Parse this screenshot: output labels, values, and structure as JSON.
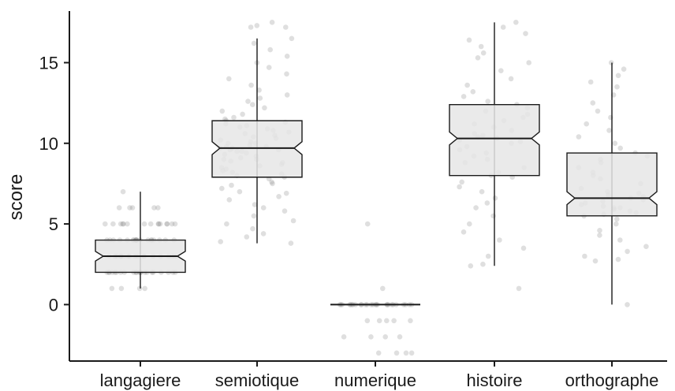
{
  "chart_data": {
    "type": "boxplot",
    "title": "",
    "xlabel": "",
    "ylabel": "score",
    "ylim": [
      -3.5,
      18.2
    ],
    "yticks": [
      0,
      5,
      10,
      15
    ],
    "notched": true,
    "categories": [
      "langagiere",
      "semiotique",
      "numerique",
      "histoire",
      "orthographe"
    ],
    "boxes": [
      {
        "category": "langagiere",
        "whisker_low": 1,
        "q1": 2,
        "median": 3,
        "q3": 4,
        "whisker_high": 7,
        "notch_low": 2.7,
        "notch_high": 3.3
      },
      {
        "category": "semiotique",
        "whisker_low": 3.8,
        "q1": 7.9,
        "median": 9.7,
        "q3": 11.4,
        "whisker_high": 16.5,
        "notch_low": 9.3,
        "notch_high": 10.1
      },
      {
        "category": "numerique",
        "whisker_low": 0,
        "q1": 0,
        "median": 0,
        "q3": 0,
        "whisker_high": 0,
        "notch_low": 0,
        "notch_high": 0
      },
      {
        "category": "histoire",
        "whisker_low": 2.4,
        "q1": 8.0,
        "median": 10.3,
        "q3": 12.4,
        "whisker_high": 17.5,
        "notch_low": 9.9,
        "notch_high": 10.7
      },
      {
        "category": "orthographe",
        "whisker_low": 0,
        "q1": 5.5,
        "median": 6.6,
        "q3": 9.4,
        "whisker_high": 15.0,
        "notch_low": 6.2,
        "notch_high": 7.0
      }
    ],
    "points": {
      "langagiere": [
        1,
        1,
        1,
        1,
        2,
        2,
        2,
        2,
        2,
        2,
        2,
        2,
        2,
        2,
        2,
        2,
        2,
        2,
        2,
        2,
        2,
        2,
        2,
        2,
        2,
        2,
        3,
        3,
        3,
        3,
        3,
        3,
        3,
        3,
        3,
        3,
        3,
        3,
        3,
        3,
        3,
        3,
        3,
        3,
        3,
        3,
        3,
        3,
        4,
        4,
        4,
        4,
        4,
        4,
        4,
        4,
        4,
        4,
        4,
        4,
        4,
        4,
        4,
        4,
        4,
        4,
        4,
        4,
        5,
        5,
        5,
        5,
        5,
        5,
        5,
        5,
        5,
        5,
        5,
        5,
        5,
        5,
        5,
        6,
        6,
        6,
        6,
        6,
        7
      ],
      "semiotique": [
        3.8,
        3.9,
        4.2,
        4.4,
        4.7,
        5.0,
        5.2,
        5.5,
        5.8,
        6.0,
        6.2,
        6.5,
        6.7,
        6.9,
        7.0,
        7.2,
        7.4,
        7.5,
        7.6,
        7.8,
        7.9,
        8.0,
        8.1,
        8.2,
        8.3,
        8.4,
        8.5,
        8.6,
        8.7,
        8.8,
        8.9,
        9.0,
        9.0,
        9.1,
        9.2,
        9.3,
        9.4,
        9.5,
        9.5,
        9.6,
        9.6,
        9.7,
        9.7,
        9.8,
        9.8,
        9.9,
        10.0,
        10.0,
        10.1,
        10.2,
        10.3,
        10.4,
        10.5,
        10.6,
        10.7,
        10.8,
        10.9,
        11.0,
        11.1,
        11.2,
        11.3,
        11.4,
        11.5,
        11.6,
        11.8,
        12.0,
        12.2,
        12.4,
        12.6,
        12.8,
        13.0,
        13.3,
        13.6,
        14.0,
        14.3,
        14.7,
        15.0,
        15.4,
        15.8,
        16.2,
        16.5,
        17.2,
        17.2,
        17.3,
        17.5
      ],
      "numerique": [
        -3,
        -3,
        -3,
        -3,
        -2,
        -2,
        -2,
        -2,
        -1,
        -1,
        -1,
        -1,
        -1,
        0,
        0,
        0,
        0,
        0,
        0,
        0,
        0,
        0,
        0,
        0,
        0,
        0,
        0,
        0,
        0,
        0,
        0,
        0,
        0,
        0,
        0,
        0,
        0,
        0,
        0,
        0,
        1,
        5
      ],
      "histoire": [
        1.0,
        2.4,
        2.5,
        3.0,
        3.5,
        4.0,
        4.5,
        5.0,
        5.5,
        6.0,
        6.3,
        6.6,
        7.0,
        7.3,
        7.6,
        7.9,
        8.0,
        8.2,
        8.5,
        8.8,
        9.0,
        9.2,
        9.4,
        9.6,
        9.8,
        10.0,
        10.1,
        10.2,
        10.3,
        10.4,
        10.5,
        10.6,
        10.8,
        11.0,
        11.2,
        11.4,
        11.6,
        11.8,
        12.0,
        12.2,
        12.4,
        12.6,
        12.9,
        13.2,
        13.6,
        14.0,
        14.5,
        15.0,
        15.3,
        15.6,
        16.0,
        16.4,
        16.8,
        17.2,
        17.5
      ],
      "orthographe": [
        0,
        2.7,
        2.8,
        3.0,
        3.3,
        3.6,
        4.0,
        4.3,
        4.6,
        5.0,
        5.3,
        5.5,
        5.6,
        5.7,
        5.8,
        5.9,
        6.0,
        6.0,
        6.1,
        6.2,
        6.3,
        6.4,
        6.5,
        6.6,
        6.7,
        6.8,
        6.9,
        7.0,
        7.2,
        7.5,
        7.8,
        8.0,
        8.2,
        8.5,
        8.8,
        9.0,
        9.2,
        9.4,
        9.7,
        10.0,
        10.4,
        10.8,
        11.2,
        11.6,
        12.0,
        12.5,
        13.0,
        13.5,
        13.8,
        14.2,
        14.6,
        15.0
      ]
    },
    "colors": {
      "box_fill": "#e6e6e6",
      "box_stroke": "#1a1a1a",
      "point": "#8c8c8c",
      "axis": "#1a1a1a"
    },
    "grid": false,
    "legend": "none"
  }
}
